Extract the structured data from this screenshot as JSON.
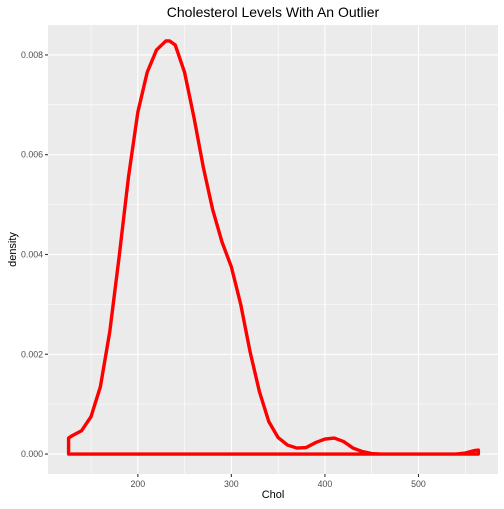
{
  "chart_data": {
    "type": "line",
    "title": "Cholesterol Levels With An Outlier",
    "xlabel": "Chol",
    "ylabel": "density",
    "xlim": [
      104,
      585
    ],
    "ylim": [
      -0.0004,
      0.0086
    ],
    "x_ticks": [
      200,
      300,
      400,
      500
    ],
    "x_tick_labels": [
      "200",
      "300",
      "400",
      "500"
    ],
    "x_minor_ticks": [
      150,
      250,
      350,
      450,
      550
    ],
    "y_ticks": [
      0.0,
      0.002,
      0.004,
      0.006,
      0.008
    ],
    "y_tick_labels": [
      "0.000",
      "0.002",
      "0.004",
      "0.006",
      "0.008"
    ],
    "y_minor_ticks": [
      0.001,
      0.003,
      0.005,
      0.007
    ],
    "grid": true,
    "background": "#EBEBEB",
    "grid_color": "#FFFFFF",
    "line_color": "#FF0000",
    "series": [
      {
        "x": [
          126,
          126,
          130,
          140,
          150,
          160,
          170,
          180,
          190,
          200,
          210,
          220,
          230,
          234,
          240,
          250,
          260,
          270,
          280,
          290,
          300,
          310,
          320,
          330,
          340,
          350,
          360,
          370,
          380,
          390,
          400,
          410,
          420,
          430,
          440,
          450,
          460,
          470,
          480,
          490,
          500,
          510,
          520,
          530,
          540,
          550,
          560,
          564,
          564
        ],
        "y": [
          0.0,
          0.00032,
          0.00037,
          0.00047,
          0.00075,
          0.00135,
          0.00245,
          0.00395,
          0.00555,
          0.00685,
          0.00765,
          0.0081,
          0.00828,
          0.00828,
          0.0082,
          0.00765,
          0.00675,
          0.00575,
          0.0049,
          0.00425,
          0.00375,
          0.003,
          0.00205,
          0.00125,
          0.00065,
          0.00033,
          0.00018,
          0.00012,
          0.00013,
          0.00023,
          0.0003,
          0.00032,
          0.00025,
          0.00012,
          5e-05,
          1e-05,
          0.0,
          0.0,
          0.0,
          0.0,
          0.0,
          0.0,
          0.0,
          0.0,
          0.0,
          2e-05,
          7e-05,
          8e-05,
          0.0
        ]
      }
    ]
  }
}
